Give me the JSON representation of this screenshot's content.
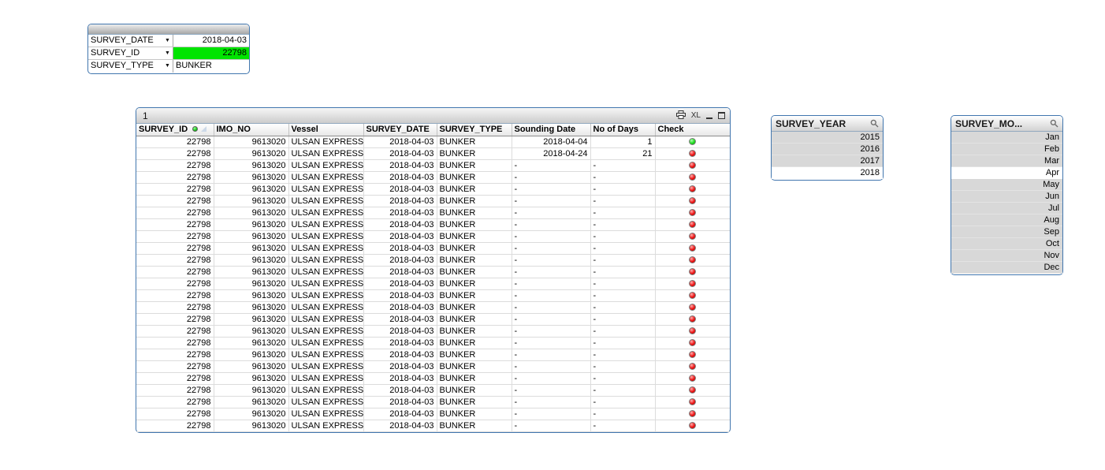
{
  "colors": {
    "object_border": "#4176ae",
    "selection_green": "#00e400",
    "check_green": "#1edc1e",
    "check_red": "#ee1414",
    "excluded_gray": "#d8d8d8"
  },
  "selections_box": {
    "rows": [
      {
        "field": "SURVEY_DATE",
        "value": "2018-04-03",
        "value_align": "right",
        "highlight": false
      },
      {
        "field": "SURVEY_ID",
        "value": "22798",
        "value_align": "right",
        "highlight": true
      },
      {
        "field": "SURVEY_TYPE",
        "value": "BUNKER",
        "value_align": "left",
        "highlight": false
      }
    ]
  },
  "table": {
    "caption": "1",
    "excel_label": "XL",
    "columns": [
      {
        "label": "SURVEY_ID",
        "align": "right",
        "has_selection_indicator": true,
        "has_sort_indicator": true
      },
      {
        "label": "IMO_NO",
        "align": "right"
      },
      {
        "label": "Vessel",
        "align": "left"
      },
      {
        "label": "SURVEY_DATE",
        "align": "right"
      },
      {
        "label": "SURVEY_TYPE",
        "align": "left"
      },
      {
        "label": "Sounding Date",
        "align": "right"
      },
      {
        "label": "No of Days",
        "align": "right"
      },
      {
        "label": "Check",
        "align": "center"
      }
    ],
    "rows": [
      {
        "survey_id": "22798",
        "imo_no": "9613020",
        "vessel": "ULSAN EXPRESS",
        "survey_date": "2018-04-03",
        "survey_type": "BUNKER",
        "sounding_date": "2018-04-04",
        "no_of_days": "1",
        "check": "green"
      },
      {
        "survey_id": "22798",
        "imo_no": "9613020",
        "vessel": "ULSAN EXPRESS",
        "survey_date": "2018-04-03",
        "survey_type": "BUNKER",
        "sounding_date": "2018-04-24",
        "no_of_days": "21",
        "check": "red"
      },
      {
        "survey_id": "22798",
        "imo_no": "9613020",
        "vessel": "ULSAN EXPRESS",
        "survey_date": "2018-04-03",
        "survey_type": "BUNKER",
        "sounding_date": "-",
        "no_of_days": "-",
        "check": "red"
      },
      {
        "survey_id": "22798",
        "imo_no": "9613020",
        "vessel": "ULSAN EXPRESS",
        "survey_date": "2018-04-03",
        "survey_type": "BUNKER",
        "sounding_date": "-",
        "no_of_days": "-",
        "check": "red"
      },
      {
        "survey_id": "22798",
        "imo_no": "9613020",
        "vessel": "ULSAN EXPRESS",
        "survey_date": "2018-04-03",
        "survey_type": "BUNKER",
        "sounding_date": "-",
        "no_of_days": "-",
        "check": "red"
      },
      {
        "survey_id": "22798",
        "imo_no": "9613020",
        "vessel": "ULSAN EXPRESS",
        "survey_date": "2018-04-03",
        "survey_type": "BUNKER",
        "sounding_date": "-",
        "no_of_days": "-",
        "check": "red"
      },
      {
        "survey_id": "22798",
        "imo_no": "9613020",
        "vessel": "ULSAN EXPRESS",
        "survey_date": "2018-04-03",
        "survey_type": "BUNKER",
        "sounding_date": "-",
        "no_of_days": "-",
        "check": "red"
      },
      {
        "survey_id": "22798",
        "imo_no": "9613020",
        "vessel": "ULSAN EXPRESS",
        "survey_date": "2018-04-03",
        "survey_type": "BUNKER",
        "sounding_date": "-",
        "no_of_days": "-",
        "check": "red"
      },
      {
        "survey_id": "22798",
        "imo_no": "9613020",
        "vessel": "ULSAN EXPRESS",
        "survey_date": "2018-04-03",
        "survey_type": "BUNKER",
        "sounding_date": "-",
        "no_of_days": "-",
        "check": "red"
      },
      {
        "survey_id": "22798",
        "imo_no": "9613020",
        "vessel": "ULSAN EXPRESS",
        "survey_date": "2018-04-03",
        "survey_type": "BUNKER",
        "sounding_date": "-",
        "no_of_days": "-",
        "check": "red"
      },
      {
        "survey_id": "22798",
        "imo_no": "9613020",
        "vessel": "ULSAN EXPRESS",
        "survey_date": "2018-04-03",
        "survey_type": "BUNKER",
        "sounding_date": "-",
        "no_of_days": "-",
        "check": "red"
      },
      {
        "survey_id": "22798",
        "imo_no": "9613020",
        "vessel": "ULSAN EXPRESS",
        "survey_date": "2018-04-03",
        "survey_type": "BUNKER",
        "sounding_date": "-",
        "no_of_days": "-",
        "check": "red"
      },
      {
        "survey_id": "22798",
        "imo_no": "9613020",
        "vessel": "ULSAN EXPRESS",
        "survey_date": "2018-04-03",
        "survey_type": "BUNKER",
        "sounding_date": "-",
        "no_of_days": "-",
        "check": "red"
      },
      {
        "survey_id": "22798",
        "imo_no": "9613020",
        "vessel": "ULSAN EXPRESS",
        "survey_date": "2018-04-03",
        "survey_type": "BUNKER",
        "sounding_date": "-",
        "no_of_days": "-",
        "check": "red"
      },
      {
        "survey_id": "22798",
        "imo_no": "9613020",
        "vessel": "ULSAN EXPRESS",
        "survey_date": "2018-04-03",
        "survey_type": "BUNKER",
        "sounding_date": "-",
        "no_of_days": "-",
        "check": "red"
      },
      {
        "survey_id": "22798",
        "imo_no": "9613020",
        "vessel": "ULSAN EXPRESS",
        "survey_date": "2018-04-03",
        "survey_type": "BUNKER",
        "sounding_date": "-",
        "no_of_days": "-",
        "check": "red"
      },
      {
        "survey_id": "22798",
        "imo_no": "9613020",
        "vessel": "ULSAN EXPRESS",
        "survey_date": "2018-04-03",
        "survey_type": "BUNKER",
        "sounding_date": "-",
        "no_of_days": "-",
        "check": "red"
      },
      {
        "survey_id": "22798",
        "imo_no": "9613020",
        "vessel": "ULSAN EXPRESS",
        "survey_date": "2018-04-03",
        "survey_type": "BUNKER",
        "sounding_date": "-",
        "no_of_days": "-",
        "check": "red"
      },
      {
        "survey_id": "22798",
        "imo_no": "9613020",
        "vessel": "ULSAN EXPRESS",
        "survey_date": "2018-04-03",
        "survey_type": "BUNKER",
        "sounding_date": "-",
        "no_of_days": "-",
        "check": "red"
      },
      {
        "survey_id": "22798",
        "imo_no": "9613020",
        "vessel": "ULSAN EXPRESS",
        "survey_date": "2018-04-03",
        "survey_type": "BUNKER",
        "sounding_date": "-",
        "no_of_days": "-",
        "check": "red"
      },
      {
        "survey_id": "22798",
        "imo_no": "9613020",
        "vessel": "ULSAN EXPRESS",
        "survey_date": "2018-04-03",
        "survey_type": "BUNKER",
        "sounding_date": "-",
        "no_of_days": "-",
        "check": "red"
      },
      {
        "survey_id": "22798",
        "imo_no": "9613020",
        "vessel": "ULSAN EXPRESS",
        "survey_date": "2018-04-03",
        "survey_type": "BUNKER",
        "sounding_date": "-",
        "no_of_days": "-",
        "check": "red"
      },
      {
        "survey_id": "22798",
        "imo_no": "9613020",
        "vessel": "ULSAN EXPRESS",
        "survey_date": "2018-04-03",
        "survey_type": "BUNKER",
        "sounding_date": "-",
        "no_of_days": "-",
        "check": "red"
      },
      {
        "survey_id": "22798",
        "imo_no": "9613020",
        "vessel": "ULSAN EXPRESS",
        "survey_date": "2018-04-03",
        "survey_type": "BUNKER",
        "sounding_date": "-",
        "no_of_days": "-",
        "check": "red"
      },
      {
        "survey_id": "22798",
        "imo_no": "9613020",
        "vessel": "ULSAN EXPRESS",
        "survey_date": "2018-04-03",
        "survey_type": "BUNKER",
        "sounding_date": "-",
        "no_of_days": "-",
        "check": "red"
      }
    ]
  },
  "listboxes": [
    {
      "title": "SURVEY_YEAR",
      "items": [
        {
          "label": "2015",
          "state": "excluded"
        },
        {
          "label": "2016",
          "state": "excluded"
        },
        {
          "label": "2017",
          "state": "excluded"
        },
        {
          "label": "2018",
          "state": "selected"
        }
      ]
    },
    {
      "title": "SURVEY_MO...",
      "items": [
        {
          "label": "Jan",
          "state": "excluded"
        },
        {
          "label": "Feb",
          "state": "excluded"
        },
        {
          "label": "Mar",
          "state": "excluded"
        },
        {
          "label": "Apr",
          "state": "selected"
        },
        {
          "label": "May",
          "state": "excluded"
        },
        {
          "label": "Jun",
          "state": "excluded"
        },
        {
          "label": "Jul",
          "state": "excluded"
        },
        {
          "label": "Aug",
          "state": "excluded"
        },
        {
          "label": "Sep",
          "state": "excluded"
        },
        {
          "label": "Oct",
          "state": "excluded"
        },
        {
          "label": "Nov",
          "state": "excluded"
        },
        {
          "label": "Dec",
          "state": "excluded"
        }
      ]
    }
  ]
}
